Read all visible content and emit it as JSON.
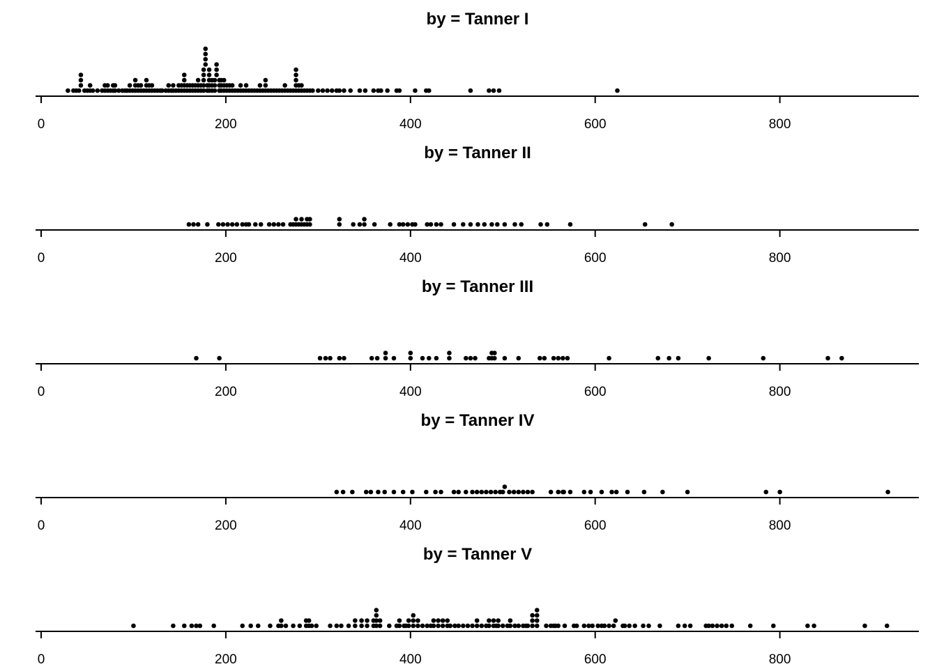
{
  "chart_data": [
    {
      "type": "scatter",
      "title": "by = Tanner I",
      "xlim": [
        0,
        950
      ],
      "xticks": [
        0,
        200,
        400,
        600,
        800
      ],
      "tick_labels": [
        "0",
        "200",
        "400",
        "600",
        "800"
      ],
      "values": [
        29,
        35,
        38,
        41,
        43,
        43,
        43,
        47,
        50,
        53,
        53,
        56,
        61,
        66,
        69,
        69,
        72,
        72,
        75,
        78,
        78,
        80,
        80,
        84,
        88,
        91,
        93,
        96,
        96,
        99,
        102,
        102,
        102,
        105,
        105,
        108,
        108,
        111,
        114,
        114,
        114,
        117,
        117,
        120,
        120,
        123,
        126,
        129,
        131,
        135,
        138,
        138,
        141,
        143,
        143,
        146,
        149,
        149,
        152,
        152,
        155,
        155,
        155,
        155,
        158,
        158,
        161,
        161,
        164,
        164,
        167,
        167,
        170,
        170,
        170,
        173,
        173,
        176,
        176,
        176,
        176,
        176,
        178,
        178,
        178,
        178,
        180,
        180,
        182,
        182,
        182,
        182,
        182,
        185,
        185,
        185,
        188,
        188,
        188,
        190,
        190,
        190,
        193,
        193,
        193,
        195,
        195,
        195,
        198,
        198,
        198,
        201,
        201,
        204,
        204,
        207,
        207,
        210,
        213,
        216,
        216,
        219,
        222,
        222,
        225,
        228,
        231,
        234,
        237,
        237,
        240,
        243,
        243,
        243,
        246,
        249,
        252,
        255,
        258,
        261,
        264,
        264,
        267,
        270,
        273,
        276,
        276,
        276,
        276,
        276,
        279,
        279,
        282,
        282,
        285,
        288,
        291,
        294,
        300,
        305,
        310,
        315,
        320,
        323,
        328,
        335,
        345,
        351,
        360,
        365,
        368,
        375,
        385,
        388,
        405,
        417,
        420,
        465,
        485,
        490,
        496,
        624
      ]
    },
    {
      "type": "scatter",
      "title": "by = Tanner II",
      "xlim": [
        0,
        950
      ],
      "xticks": [
        0,
        200,
        400,
        600,
        800
      ],
      "tick_labels": [
        "0",
        "200",
        "400",
        "600",
        "800"
      ],
      "values": [
        160,
        165,
        170,
        180,
        192,
        197,
        202,
        207,
        212,
        218,
        222,
        225,
        232,
        238,
        247,
        252,
        257,
        262,
        270,
        273,
        276,
        276,
        279,
        282,
        282,
        285,
        288,
        288,
        291,
        291,
        323,
        323,
        338,
        345,
        350,
        350,
        361,
        378,
        388,
        392,
        397,
        402,
        405,
        418,
        422,
        428,
        433,
        447,
        457,
        465,
        473,
        480,
        488,
        494,
        502,
        513,
        520,
        541,
        548,
        573,
        654,
        683
      ]
    },
    {
      "type": "scatter",
      "title": "by = Tanner III",
      "xlim": [
        0,
        950
      ],
      "xticks": [
        0,
        200,
        400,
        600,
        800
      ],
      "tick_labels": [
        "0",
        "200",
        "400",
        "600",
        "800"
      ],
      "values": [
        168,
        193,
        302,
        308,
        313,
        323,
        328,
        358,
        364,
        373,
        373,
        382,
        400,
        400,
        413,
        420,
        428,
        442,
        442,
        460,
        465,
        470,
        485,
        488,
        488,
        491,
        491,
        502,
        517,
        540,
        545,
        555,
        560,
        565,
        570,
        615,
        668,
        680,
        690,
        723,
        782,
        852,
        867
      ]
    },
    {
      "type": "scatter",
      "title": "by = Tanner IV",
      "xlim": [
        0,
        950
      ],
      "xticks": [
        0,
        200,
        400,
        600,
        800
      ],
      "tick_labels": [
        "0",
        "200",
        "400",
        "600",
        "800"
      ],
      "values": [
        320,
        327,
        337,
        352,
        357,
        365,
        372,
        382,
        392,
        402,
        417,
        427,
        433,
        447,
        452,
        460,
        467,
        472,
        477,
        482,
        487,
        492,
        497,
        500,
        502,
        507,
        512,
        517,
        522,
        527,
        532,
        552,
        560,
        565,
        566,
        573,
        588,
        595,
        607,
        618,
        623,
        635,
        653,
        673,
        700,
        785,
        800,
        917
      ]
    },
    {
      "type": "scatter",
      "title": "by = Tanner V",
      "xlim": [
        0,
        950
      ],
      "xticks": [
        0,
        200,
        400,
        600,
        800
      ],
      "tick_labels": [
        "0",
        "200",
        "400",
        "600",
        "800"
      ],
      "values": [
        100,
        143,
        155,
        163,
        168,
        172,
        187,
        218,
        227,
        235,
        248,
        257,
        260,
        260,
        265,
        273,
        280,
        287,
        287,
        290,
        290,
        293,
        298,
        313,
        320,
        325,
        333,
        340,
        340,
        347,
        347,
        353,
        353,
        360,
        360,
        363,
        363,
        363,
        363,
        367,
        367,
        377,
        385,
        388,
        388,
        393,
        395,
        398,
        398,
        403,
        403,
        403,
        408,
        408,
        413,
        418,
        422,
        425,
        425,
        430,
        430,
        435,
        435,
        440,
        440,
        443,
        448,
        452,
        457,
        462,
        467,
        472,
        472,
        477,
        482,
        485,
        485,
        490,
        490,
        493,
        495,
        495,
        500,
        505,
        508,
        508,
        513,
        517,
        522,
        525,
        527,
        532,
        532,
        532,
        537,
        537,
        537,
        537,
        547,
        552,
        555,
        557,
        560,
        567,
        577,
        580,
        588,
        593,
        597,
        603,
        607,
        610,
        615,
        620,
        622,
        630,
        632,
        637,
        643,
        652,
        658,
        670,
        690,
        697,
        703,
        720,
        723,
        727,
        732,
        737,
        742,
        748,
        768,
        793,
        830,
        837,
        892,
        916
      ]
    }
  ]
}
